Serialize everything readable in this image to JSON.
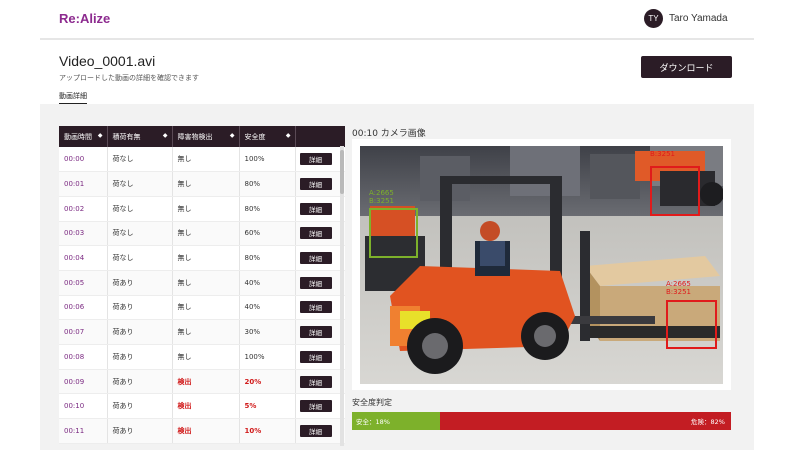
{
  "app": {
    "brand": "Re:Alize",
    "user": {
      "initials": "TY",
      "name": "Taro Yamada"
    }
  },
  "header": {
    "title": "Video_0001.avi",
    "subtitle": "アップロードした動画の詳細を確認できます",
    "download_label": "ダウンロード",
    "tab_label": "動画詳細"
  },
  "table": {
    "columns": [
      "動画時間",
      "積荷有無",
      "障害物検出",
      "安全度",
      ""
    ],
    "detail_label": "詳細",
    "rows": [
      {
        "time": "00:00",
        "cargo": "荷なし",
        "obstacle": "無し",
        "safety": "100%",
        "alert": false
      },
      {
        "time": "00:01",
        "cargo": "荷なし",
        "obstacle": "無し",
        "safety": "80%",
        "alert": false
      },
      {
        "time": "00:02",
        "cargo": "荷なし",
        "obstacle": "無し",
        "safety": "80%",
        "alert": false
      },
      {
        "time": "00:03",
        "cargo": "荷なし",
        "obstacle": "無し",
        "safety": "60%",
        "alert": false
      },
      {
        "time": "00:04",
        "cargo": "荷なし",
        "obstacle": "無し",
        "safety": "80%",
        "alert": false
      },
      {
        "time": "00:05",
        "cargo": "荷あり",
        "obstacle": "無し",
        "safety": "40%",
        "alert": false
      },
      {
        "time": "00:06",
        "cargo": "荷あり",
        "obstacle": "無し",
        "safety": "40%",
        "alert": false
      },
      {
        "time": "00:07",
        "cargo": "荷あり",
        "obstacle": "無し",
        "safety": "30%",
        "alert": false
      },
      {
        "time": "00:08",
        "cargo": "荷あり",
        "obstacle": "無し",
        "safety": "100%",
        "alert": false
      },
      {
        "time": "00:09",
        "cargo": "荷あり",
        "obstacle": "検出",
        "safety": "20%",
        "alert": true
      },
      {
        "time": "00:10",
        "cargo": "荷あり",
        "obstacle": "検出",
        "safety": "5%",
        "alert": true
      },
      {
        "time": "00:11",
        "cargo": "荷あり",
        "obstacle": "検出",
        "safety": "10%",
        "alert": true
      }
    ]
  },
  "camera": {
    "title": "00:10 カメラ画像",
    "detections": [
      {
        "color": "#7db12b",
        "line1": "A:2665",
        "line2": "B:3251"
      },
      {
        "color": "#e01b1b",
        "line1": "",
        "line2": "B:3251"
      },
      {
        "color": "#e01b1b",
        "line1": "A:2665",
        "line2": "B:3251"
      }
    ]
  },
  "safety": {
    "title": "安全度判定",
    "safe_label": "安全：18%",
    "danger_label": "危険：82%",
    "safe_fraction": 0.18,
    "colors": {
      "safe": "#7db12b",
      "danger": "#c31d23"
    }
  },
  "colors": {
    "accent": "#7b2a82",
    "dark": "#2b1c26",
    "alert": "#d11b1b"
  }
}
